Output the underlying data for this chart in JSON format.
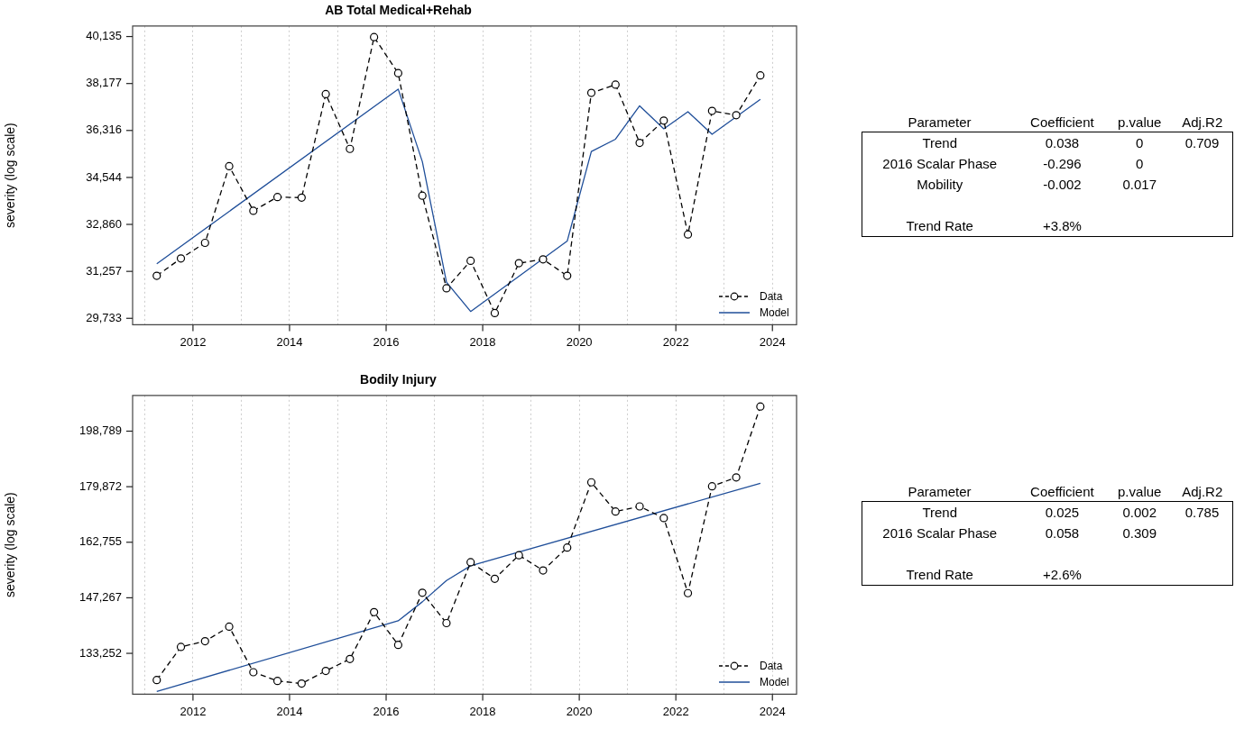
{
  "chart_data": [
    {
      "type": "line",
      "title": "AB Total Medical+Rehab",
      "ylabel": "severity (log scale)",
      "log": true,
      "grid": "x",
      "legend": "bottom right",
      "x": [
        2011.25,
        2011.75,
        2012.25,
        2012.75,
        2013.25,
        2013.75,
        2014.25,
        2014.75,
        2015.25,
        2015.75,
        2016.25,
        2016.75,
        2017.25,
        2017.75,
        2018.25,
        2018.75,
        2019.25,
        2019.75,
        2020.25,
        2020.75,
        2021.25,
        2021.75,
        2022.25,
        2022.75,
        2023.25,
        2023.75
      ],
      "xlim": [
        2010.75,
        2024.5
      ],
      "xticks": [
        {
          "value": 2011,
          "label": null
        },
        2012,
        {
          "value": 2013,
          "label": null
        },
        2014,
        {
          "value": 2015,
          "label": null
        },
        2016,
        {
          "value": 2017,
          "label": null
        },
        2018,
        {
          "value": 2019,
          "label": null
        },
        2020,
        {
          "value": 2021,
          "label": null
        },
        2022,
        {
          "value": 2023,
          "label": null
        },
        2024
      ],
      "ylim": [
        29530,
        40590
      ],
      "yticks": [
        {
          "value": 29733,
          "label": "29,733"
        },
        {
          "value": 31257,
          "label": "31,257"
        },
        {
          "value": 32860,
          "label": "32,860"
        },
        {
          "value": 34544,
          "label": "34,544"
        },
        {
          "value": 36316,
          "label": "36,316"
        },
        {
          "value": 38177,
          "label": "38,177"
        },
        {
          "value": 40135,
          "label": "40,135"
        }
      ],
      "series": [
        {
          "name": "Data",
          "color": "#000000",
          "line_style": "dashed",
          "marker": "circle",
          "values": [
            31110,
            31690,
            32220,
            34960,
            33340,
            33830,
            33810,
            37750,
            35610,
            40110,
            38600,
            33880,
            30700,
            31610,
            29900,
            31530,
            31660,
            31110,
            37800,
            38130,
            35840,
            36700,
            32510,
            37080,
            36910,
            38510
          ]
        },
        {
          "name": "Model",
          "color": "#1f4e99",
          "line_style": "solid",
          "marker": "none",
          "x": [
            2011.25,
            2016.25,
            2016.75,
            2017.25,
            2017.75,
            2019.75,
            2020.25,
            2020.75,
            2021.25,
            2021.75,
            2022.25,
            2022.75,
            2023.75
          ],
          "values": [
            31510,
            37950,
            35130,
            30900,
            29950,
            32280,
            35510,
            35980,
            37280,
            36380,
            37050,
            36170,
            37540
          ]
        }
      ]
    },
    {
      "type": "other",
      "categories": [
        "Parameter",
        "Coefficient",
        "p.value",
        "Adj.R2"
      ],
      "cell_labels": [
        [
          "Trend",
          "0.038",
          "0",
          "0.709"
        ],
        [
          "2016 Scalar Phase",
          "-0.296",
          "0",
          null
        ],
        [
          "Mobility",
          "-0.002",
          "0.017",
          null
        ],
        [
          null,
          null,
          null,
          null
        ],
        [
          "Trend Rate",
          "+3.8%",
          null,
          null
        ]
      ]
    },
    {
      "type": "line",
      "title": "Bodily Injury",
      "ylabel": "severity (log scale)",
      "log": true,
      "grid": "x",
      "legend": "bottom right",
      "x": [
        2011.25,
        2011.75,
        2012.25,
        2012.75,
        2013.25,
        2013.75,
        2014.25,
        2014.75,
        2015.25,
        2015.75,
        2016.25,
        2016.75,
        2017.25,
        2017.75,
        2018.25,
        2018.75,
        2019.25,
        2019.75,
        2020.25,
        2020.75,
        2021.25,
        2021.75,
        2022.25,
        2022.75,
        2023.25,
        2023.75
      ],
      "xlim": [
        2010.75,
        2024.5
      ],
      "xticks": [
        {
          "value": 2011,
          "label": null
        },
        2012,
        {
          "value": 2013,
          "label": null
        },
        2014,
        {
          "value": 2015,
          "label": null
        },
        2016,
        {
          "value": 2017,
          "label": null
        },
        2018,
        {
          "value": 2019,
          "label": null
        },
        2020,
        {
          "value": 2021,
          "label": null
        },
        2022,
        {
          "value": 2023,
          "label": null
        },
        2024
      ],
      "ylim": [
        123800,
        212000
      ],
      "yticks": [
        {
          "value": 133252,
          "label": "133,252"
        },
        {
          "value": 147267,
          "label": "147,267"
        },
        {
          "value": 162755,
          "label": "162,755"
        },
        {
          "value": 179872,
          "label": "179,872"
        },
        {
          "value": 198789,
          "label": "198,789"
        }
      ],
      "series": [
        {
          "name": "Data",
          "color": "#000000",
          "line_style": "dashed",
          "marker": "circle",
          "values": [
            127000,
            134800,
            136200,
            139800,
            128800,
            126800,
            126200,
            129100,
            131900,
            143500,
            135300,
            148600,
            140700,
            157000,
            152400,
            159000,
            154700,
            161200,
            181300,
            172000,
            173600,
            170000,
            148500,
            180000,
            182900,
            207800
          ]
        },
        {
          "name": "Model",
          "color": "#1f4e99",
          "line_style": "solid",
          "marker": "none",
          "x": [
            2011.25,
            2016.25,
            2016.75,
            2017.25,
            2017.75,
            2023.75
          ],
          "values": [
            124400,
            141300,
            146200,
            151900,
            156000,
            181000
          ]
        }
      ]
    },
    {
      "type": "other",
      "categories": [
        "Parameter",
        "Coefficient",
        "p.value",
        "Adj.R2"
      ],
      "cell_labels": [
        [
          "Trend",
          "0.025",
          "0.002",
          "0.785"
        ],
        [
          "2016 Scalar Phase",
          "0.058",
          "0.309",
          null
        ],
        [
          null,
          null,
          null,
          null
        ],
        [
          "Trend Rate",
          "+2.6%",
          null,
          null
        ]
      ]
    }
  ]
}
